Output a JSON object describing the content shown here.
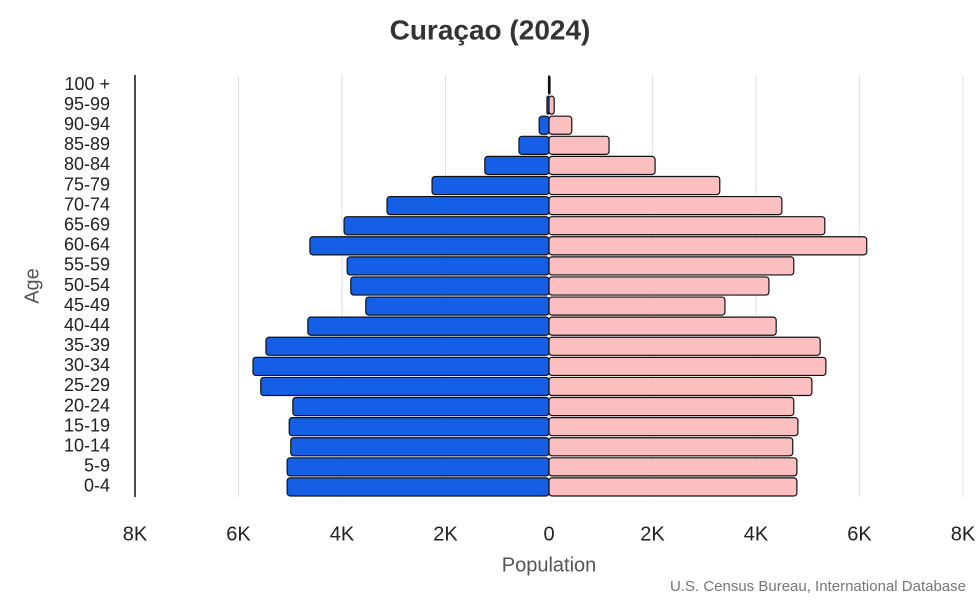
{
  "chart_data": {
    "type": "pyramid",
    "title": "Curaçao (2024)",
    "x_label": "Population",
    "y_label": "Age",
    "source": "U.S. Census Bureau, International Database",
    "categories": [
      "0-4",
      "5-9",
      "10-14",
      "15-19",
      "20-24",
      "25-29",
      "30-34",
      "35-39",
      "40-44",
      "45-49",
      "50-54",
      "55-59",
      "60-64",
      "65-69",
      "70-74",
      "75-79",
      "80-84",
      "85-89",
      "90-94",
      "95-99",
      "100 +"
    ],
    "series": [
      {
        "color": "#155ee6",
        "values": [
          -5060,
          -5060,
          -4990,
          -5020,
          -4950,
          -5570,
          -5720,
          -5470,
          -4660,
          -3540,
          -3830,
          -3900,
          -4620,
          -3960,
          -3130,
          -2260,
          -1240,
          -580,
          -190,
          -40,
          -10
        ]
      },
      {
        "color": "#fbbfbf",
        "values": [
          4790,
          4790,
          4710,
          4810,
          4730,
          5080,
          5350,
          5240,
          4390,
          3400,
          4250,
          4730,
          6140,
          5330,
          4500,
          3300,
          2050,
          1160,
          440,
          100,
          20
        ]
      }
    ],
    "xlim": [
      -8000,
      8000
    ],
    "xticks": [
      {
        "value": -8000,
        "label": "8K"
      },
      {
        "value": -6000,
        "label": "6K"
      },
      {
        "value": -4000,
        "label": "4K"
      },
      {
        "value": -2000,
        "label": "2K"
      },
      0,
      {
        "value": 2000,
        "label": "2K"
      },
      {
        "value": 4000,
        "label": "4K"
      },
      {
        "value": 6000,
        "label": "6K"
      },
      {
        "value": 8000,
        "label": "8K"
      }
    ],
    "grid": true
  }
}
